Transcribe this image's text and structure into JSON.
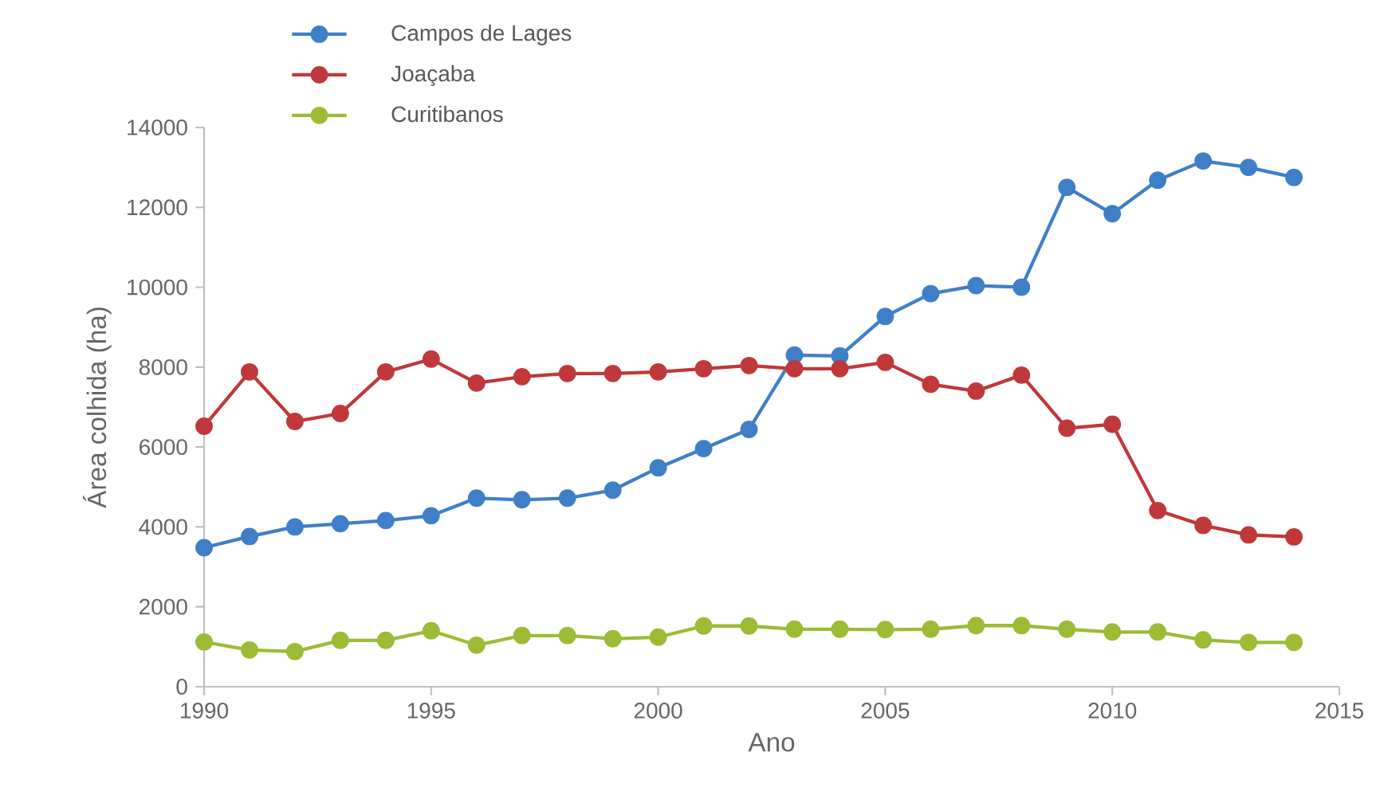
{
  "chart_data": {
    "type": "line",
    "xlabel": "Ano",
    "ylabel": "Área colhida (ha)",
    "x": [
      1990,
      1991,
      1992,
      1993,
      1994,
      1995,
      1996,
      1997,
      1998,
      1999,
      2000,
      2001,
      2002,
      2003,
      2004,
      2005,
      2006,
      2007,
      2008,
      2009,
      2010,
      2011,
      2012,
      2013,
      2014
    ],
    "series": [
      {
        "name": "Campos de Lages",
        "color": "#3f7fc8",
        "values": [
          3480,
          3760,
          4000,
          4080,
          4160,
          4280,
          4720,
          4680,
          4720,
          4920,
          5480,
          5960,
          6440,
          8300,
          8280,
          9270,
          9840,
          10040,
          10000,
          12500,
          11840,
          12680,
          13160,
          13000,
          12750
        ]
      },
      {
        "name": "Joaçaba",
        "color": "#c0383a",
        "values": [
          6520,
          7880,
          6640,
          6840,
          7880,
          8200,
          7600,
          7760,
          7840,
          7840,
          7880,
          7960,
          8040,
          7960,
          7960,
          8120,
          7570,
          7400,
          7800,
          6470,
          6570,
          4410,
          4040,
          3800,
          3750
        ]
      },
      {
        "name": "Curitibanos",
        "color": "#9dbb35",
        "values": [
          1120,
          920,
          880,
          1160,
          1160,
          1400,
          1040,
          1280,
          1280,
          1200,
          1240,
          1520,
          1520,
          1440,
          1440,
          1430,
          1440,
          1530,
          1530,
          1440,
          1370,
          1370,
          1170,
          1110,
          1110
        ]
      }
    ],
    "xlim": [
      1990,
      2015
    ],
    "xticks": [
      1990,
      1995,
      2000,
      2005,
      2010,
      2015
    ],
    "ylim": [
      0,
      14000
    ],
    "yticks": [
      0,
      2000,
      4000,
      6000,
      8000,
      10000,
      12000,
      14000
    ],
    "grid": false,
    "legend": "top left",
    "marker": "circle",
    "line_style": "solid"
  }
}
